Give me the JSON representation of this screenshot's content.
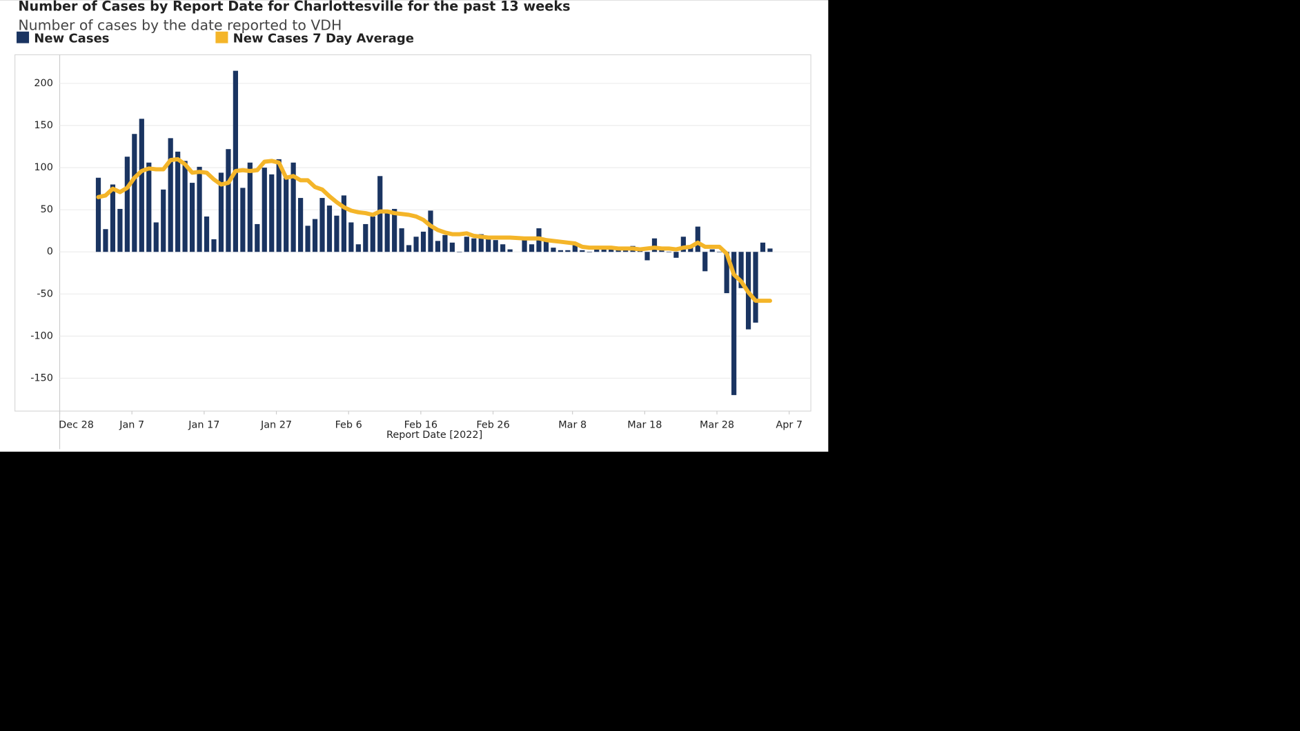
{
  "chart_data": {
    "type": "bar",
    "title": "Number of Cases by Report Date for Charlottesville for the past 13 weeks",
    "subtitle": "Number of cases by the date reported to VDH",
    "x_label": "Report Date [2022]",
    "x": [
      "Jan 2",
      "Jan 3",
      "Jan 4",
      "Jan 5",
      "Jan 6",
      "Jan 7",
      "Jan 8",
      "Jan 9",
      "Jan 10",
      "Jan 11",
      "Jan 12",
      "Jan 13",
      "Jan 14",
      "Jan 15",
      "Jan 16",
      "Jan 17",
      "Jan 18",
      "Jan 19",
      "Jan 20",
      "Jan 21",
      "Jan 22",
      "Jan 23",
      "Jan 24",
      "Jan 25",
      "Jan 26",
      "Jan 27",
      "Jan 28",
      "Jan 29",
      "Jan 30",
      "Jan 31",
      "Feb 1",
      "Feb 2",
      "Feb 3",
      "Feb 4",
      "Feb 5",
      "Feb 6",
      "Feb 7",
      "Feb 8",
      "Feb 9",
      "Feb 10",
      "Feb 11",
      "Feb 12",
      "Feb 13",
      "Feb 14",
      "Feb 15",
      "Feb 16",
      "Feb 17",
      "Feb 18",
      "Feb 19",
      "Feb 20",
      "Feb 21",
      "Feb 22",
      "Feb 23",
      "Feb 24",
      "Feb 25",
      "Feb 26",
      "Feb 27",
      "Feb 28",
      "Mar 1",
      "Mar 2",
      "Mar 3",
      "Mar 4",
      "Mar 5",
      "Mar 6",
      "Mar 7",
      "Mar 8",
      "Mar 9",
      "Mar 10",
      "Mar 11",
      "Mar 12",
      "Mar 13",
      "Mar 14",
      "Mar 15",
      "Mar 16",
      "Mar 17",
      "Mar 18",
      "Mar 19",
      "Mar 20",
      "Mar 21",
      "Mar 22",
      "Mar 23",
      "Mar 24",
      "Mar 25",
      "Mar 26",
      "Mar 27",
      "Mar 28",
      "Mar 29",
      "Mar 30",
      "Mar 31",
      "Apr 1",
      "Apr 2",
      "Apr 3",
      "Apr 4"
    ],
    "series": [
      {
        "name": "New Cases",
        "type": "bar",
        "color": "#1a3461",
        "values": [
          88,
          27,
          80,
          51,
          113,
          140,
          158,
          106,
          35,
          74,
          135,
          119,
          108,
          82,
          101,
          42,
          15,
          94,
          122,
          215,
          76,
          106,
          33,
          100,
          92,
          110,
          88,
          106,
          64,
          31,
          39,
          64,
          55,
          43,
          67,
          35,
          9,
          33,
          42,
          90,
          46,
          51,
          28,
          8,
          18,
          24,
          49,
          13,
          20,
          11,
          0,
          18,
          16,
          21,
          18,
          14,
          9,
          3,
          14,
          9,
          28,
          14,
          5,
          2,
          2,
          8,
          2,
          0,
          4,
          3,
          3,
          3,
          2,
          7,
          4,
          -10,
          16,
          5,
          0,
          -7,
          18,
          5,
          30,
          -23,
          3,
          0,
          -49,
          -170,
          -43,
          -92,
          -84,
          11,
          4
        ]
      },
      {
        "name": "New Cases 7 Day Average",
        "type": "line",
        "color": "#f4b529",
        "values": [
          65,
          67,
          75,
          71,
          76,
          88,
          96,
          99,
          98,
          98,
          109,
          110,
          104,
          94,
          95,
          94,
          86,
          80,
          82,
          96,
          97,
          96,
          97,
          107,
          108,
          106,
          88,
          90,
          85,
          85,
          77,
          74,
          66,
          59,
          53,
          49,
          47,
          46,
          44,
          48,
          48,
          46,
          45,
          44,
          42,
          38,
          31,
          26,
          23,
          21,
          21,
          22,
          19,
          18,
          17,
          17,
          17,
          17,
          16,
          16,
          16,
          14,
          13,
          12,
          11,
          10,
          6,
          5,
          5,
          5,
          5,
          4,
          4,
          4,
          3,
          4,
          5,
          4,
          4,
          3,
          5,
          6,
          11,
          6,
          6,
          6,
          -2,
          -27,
          -35,
          -48,
          -58,
          -58,
          -58
        ]
      }
    ],
    "xlim": [
      "Dec 28",
      "Apr 10"
    ],
    "xticks": [
      "Dec 28",
      "Jan 7",
      "Jan 17",
      "Jan 27",
      "Feb 6",
      "Feb 16",
      "Feb 26",
      "Mar 8",
      "Mar 18",
      "Mar 28",
      "Apr 7"
    ],
    "ylim": [
      -189,
      234
    ],
    "yticks": [
      -150,
      -100,
      -50,
      0,
      50,
      100,
      150,
      200
    ],
    "grid": true
  }
}
